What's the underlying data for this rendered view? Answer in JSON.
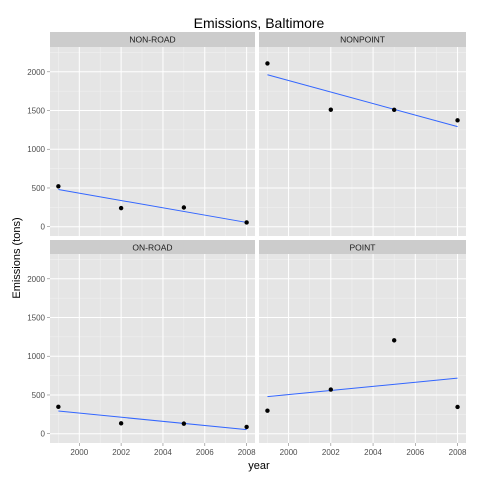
{
  "chart_data": {
    "type": "scatter",
    "title": "Emissions, Baltimore",
    "xlabel": "year",
    "ylabel": "Emissions (tons)",
    "xlim": [
      1998.6,
      2008.4
    ],
    "ylim": [
      -120,
      2320
    ],
    "x_ticks": [
      2000,
      2002,
      2004,
      2006,
      2008
    ],
    "x_tick_labels": [
      "2000",
      "2002",
      "2004",
      "2006",
      "2008"
    ],
    "y_ticks": [
      0,
      500,
      1000,
      1500,
      2000
    ],
    "y_tick_labels": [
      "0",
      "500",
      "1000",
      "1500",
      "2000"
    ],
    "grid": true,
    "facets": [
      {
        "label": "NON-ROAD",
        "x": [
          1999,
          2002,
          2005,
          2008
        ],
        "y": [
          522,
          240,
          248,
          55
        ],
        "fit": {
          "x": [
            1999,
            2008
          ],
          "y": [
            480,
            55
          ]
        }
      },
      {
        "label": "NONPOINT",
        "x": [
          1999,
          2002,
          2005,
          2008
        ],
        "y": [
          2108,
          1510,
          1509,
          1373
        ],
        "fit": {
          "x": [
            1999,
            2008
          ],
          "y": [
            1962,
            1292
          ]
        }
      },
      {
        "label": "ON-ROAD",
        "x": [
          1999,
          2002,
          2005,
          2008
        ],
        "y": [
          347,
          134,
          130,
          88
        ],
        "fit": {
          "x": [
            1999,
            2008
          ],
          "y": [
            293,
            52
          ]
        }
      },
      {
        "label": "POINT",
        "x": [
          1999,
          2002,
          2005,
          2008
        ],
        "y": [
          297,
          570,
          1205,
          345
        ],
        "fit": {
          "x": [
            1999,
            2008
          ],
          "y": [
            478,
            717
          ]
        }
      }
    ],
    "colors": {
      "panel": "#e5e5e5",
      "grid_major": "#ffffff",
      "grid_minor": "#f2f2f2",
      "strip": "#cccccc",
      "point": "#000000",
      "fit_line": "#3366ff"
    }
  }
}
